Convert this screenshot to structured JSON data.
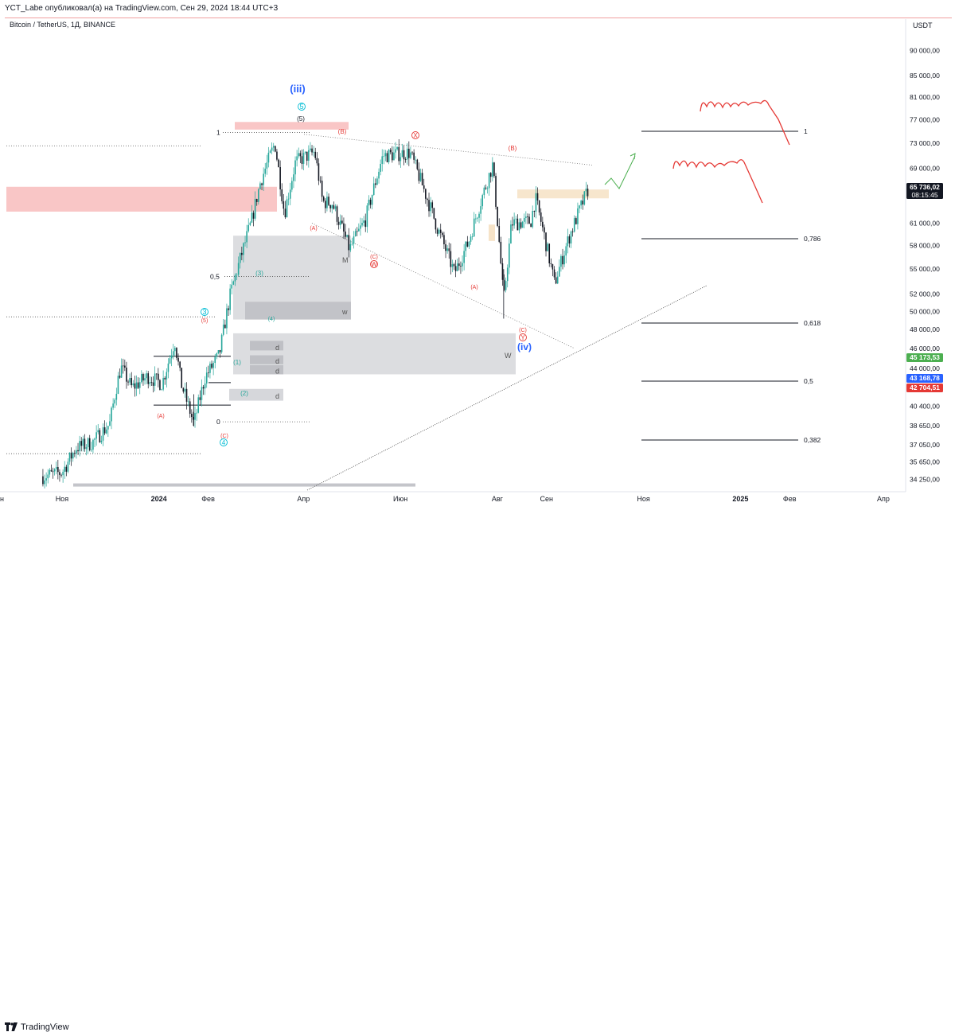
{
  "header": {
    "publish_line": "YCT_Labe опубликовал(а) на TradingView.com, Сен 29, 2024 18:44 UTC+3",
    "symbol": "Bitcoin / TetherUS, 1Д, BINANCE",
    "currency": "USDT"
  },
  "footer": {
    "brand": "TradingView",
    "logo_icon": "tradingview-logo-icon"
  },
  "colors": {
    "up": "#26a69a",
    "down": "#131722",
    "red_mark": "#e53935",
    "blue_mark": "#2962ff",
    "green_arrow": "#4caf50",
    "last_price_bg": "#131722"
  },
  "chart_data": {
    "type": "candlestick",
    "y_scale": "log",
    "ylim": [
      33500,
      93500
    ],
    "price_ticks": [
      "90 000,00",
      "85 000,00",
      "81 000,00",
      "77 000,00",
      "73 000,00",
      "69 000,00",
      "65 000,00",
      "61 000,00",
      "58 000,00",
      "55 000,00",
      "52 000,00",
      "50 000,00",
      "48 000,00",
      "46 000,00",
      "44 000,00",
      "42 000,00",
      "40 400,00",
      "38 650,00",
      "37 050,00",
      "35 650,00",
      "34 250,00"
    ],
    "price_tick_values": [
      90000,
      85000,
      81000,
      77000,
      73000,
      69000,
      65000,
      61000,
      58000,
      55000,
      52000,
      50000,
      48000,
      46000,
      44000,
      42000,
      40400,
      38650,
      37050,
      35650,
      34250
    ],
    "time_ticks": [
      {
        "label": "Ноя",
        "date": "2023-11-01"
      },
      {
        "label": "2024",
        "date": "2024-01-01"
      },
      {
        "label": "Фев",
        "date": "2024-02-01"
      },
      {
        "label": "Апр",
        "date": "2024-04-01"
      },
      {
        "label": "Июн",
        "date": "2024-06-01"
      },
      {
        "label": "Авг",
        "date": "2024-08-01"
      },
      {
        "label": "Сен",
        "date": "2024-09-01"
      },
      {
        "label": "Ноя",
        "date": "2024-11-01"
      },
      {
        "label": "2025",
        "date": "2025-01-01"
      },
      {
        "label": "Фев",
        "date": "2025-02-01"
      },
      {
        "label": "Апр",
        "date": "2025-04-01"
      }
    ],
    "price_badges": [
      {
        "value": "65 736,02",
        "sub": "08:15:45",
        "price": 65736,
        "color": "#131722"
      },
      {
        "value": "45 173,53",
        "price": 45173.53,
        "color": "#4caf50"
      },
      {
        "value": "43 168,78",
        "price": 43168.78,
        "color": "#2962ff"
      },
      {
        "value": "42 704,51",
        "price": 42704.51,
        "color": "#e53935"
      }
    ],
    "price_path": [
      [
        "2023-10-20",
        34500
      ],
      [
        "2023-11-01",
        34800
      ],
      [
        "2023-11-10",
        36800
      ],
      [
        "2023-11-20",
        37200
      ],
      [
        "2023-12-01",
        38800
      ],
      [
        "2023-12-05",
        42000
      ],
      [
        "2023-12-08",
        44100
      ],
      [
        "2023-12-15",
        42100
      ],
      [
        "2023-12-25",
        43200
      ],
      [
        "2024-01-03",
        42500
      ],
      [
        "2024-01-11",
        46800
      ],
      [
        "2024-01-15",
        42500
      ],
      [
        "2024-01-23",
        38800
      ],
      [
        "2024-01-30",
        43100
      ],
      [
        "2024-02-08",
        45300
      ],
      [
        "2024-02-15",
        52000
      ],
      [
        "2024-02-28",
        61000
      ],
      [
        "2024-03-05",
        67000
      ],
      [
        "2024-03-14",
        73000
      ],
      [
        "2024-03-20",
        62300
      ],
      [
        "2024-03-27",
        70000
      ],
      [
        "2024-04-08",
        71600
      ],
      [
        "2024-04-13",
        64000
      ],
      [
        "2024-04-19",
        63800
      ],
      [
        "2024-04-30",
        57500
      ],
      [
        "2024-05-10",
        61500
      ],
      [
        "2024-05-21",
        71000
      ],
      [
        "2024-06-07",
        71500
      ],
      [
        "2024-06-24",
        60500
      ],
      [
        "2024-07-05",
        54500
      ],
      [
        "2024-07-14",
        58500
      ],
      [
        "2024-07-29",
        69500
      ],
      [
        "2024-08-05",
        51000
      ],
      [
        "2024-08-10",
        61000
      ],
      [
        "2024-08-22",
        61200
      ],
      [
        "2024-08-25",
        64500
      ],
      [
        "2024-09-06",
        53200
      ],
      [
        "2024-09-15",
        59000
      ],
      [
        "2024-09-27",
        65736
      ]
    ],
    "fib_levels": [
      {
        "label": "1"
      },
      {
        "label": "0,786"
      },
      {
        "label": "0,618"
      },
      {
        "label": "0,5"
      },
      {
        "label": "0,382"
      }
    ],
    "left_fib": [
      {
        "label": "1"
      },
      {
        "label": "0,5"
      },
      {
        "label": "0"
      }
    ],
    "wave_labels": [
      {
        "text": "(iii)",
        "color": "#2962ff"
      },
      {
        "text": "(iv)",
        "color": "#2962ff"
      },
      {
        "text": "5",
        "color": "#00bcd4",
        "circled": true
      },
      {
        "text": "(5)",
        "color": "#131722"
      },
      {
        "text": "(B)",
        "color": "#e53935"
      },
      {
        "text": "X",
        "color": "#e53935",
        "circled": true
      },
      {
        "text": "(B)",
        "color": "#e53935"
      },
      {
        "text": "(A)",
        "color": "#e53935"
      },
      {
        "text": "(C)",
        "color": "#e53935"
      },
      {
        "text": "W",
        "color": "#e53935",
        "circled": true
      },
      {
        "text": "(A)",
        "color": "#e53935"
      },
      {
        "text": "(C)",
        "color": "#e53935"
      },
      {
        "text": "Y",
        "color": "#e53935",
        "circled": true
      },
      {
        "text": "3",
        "color": "#00bcd4",
        "circled": true
      },
      {
        "text": "(5)",
        "color": "#e53935"
      },
      {
        "text": "(3)",
        "color": "#26a69a"
      },
      {
        "text": "(4)",
        "color": "#26a69a"
      },
      {
        "text": "(1)",
        "color": "#26a69a"
      },
      {
        "text": "(2)",
        "color": "#26a69a"
      },
      {
        "text": "(A)",
        "color": "#e53935"
      },
      {
        "text": "(C)",
        "color": "#e53935"
      },
      {
        "text": "4",
        "color": "#00bcd4",
        "circled": true
      }
    ],
    "box_labels": [
      "M",
      "w",
      "W",
      "d",
      "d",
      "d",
      "d"
    ]
  }
}
